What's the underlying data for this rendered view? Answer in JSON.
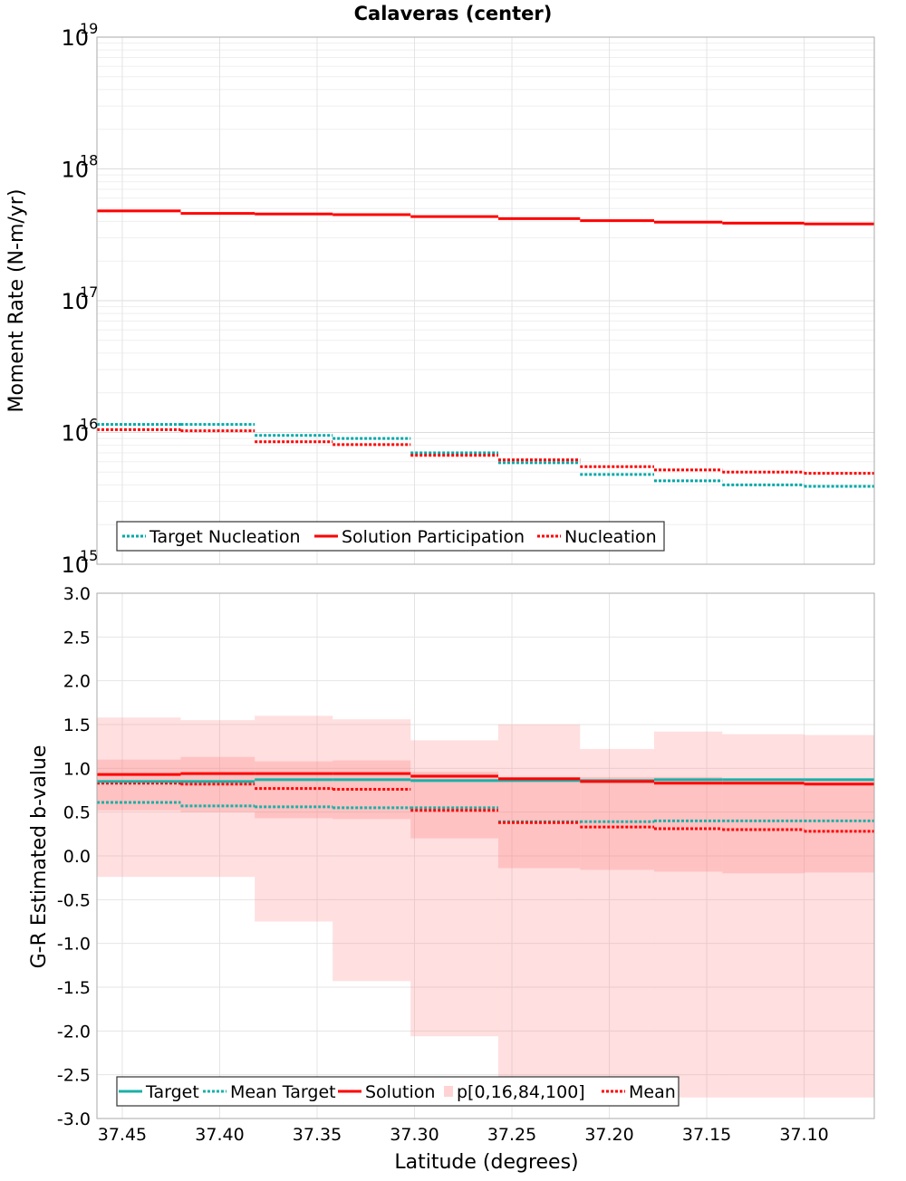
{
  "chart_data": {
    "title": "Calaveras (center)",
    "xlabel": "Latitude (degrees)",
    "x_axis": {
      "reversed": true,
      "range": [
        37.064,
        37.463
      ],
      "ticks": [
        37.45,
        37.4,
        37.35,
        37.3,
        37.25,
        37.2,
        37.15,
        37.1
      ],
      "tick_labels": [
        "37.45",
        "37.40",
        "37.35",
        "37.30",
        "37.25",
        "37.20",
        "37.15",
        "37.10"
      ]
    },
    "bin_edges": [
      37.463,
      37.42,
      37.382,
      37.342,
      37.302,
      37.257,
      37.215,
      37.177,
      37.142,
      37.1,
      37.064
    ],
    "panels": [
      {
        "type": "line",
        "ylabel": "Moment Rate (N-m/yr)",
        "y_scale": "log",
        "ylim": [
          1000000000000000.0,
          1e+19
        ],
        "y_tick_labels": [
          {
            "value": 1e+19,
            "base": "10",
            "exp": "19"
          },
          {
            "value": 1e+18,
            "base": "10",
            "exp": "18"
          },
          {
            "value": 1e+17,
            "base": "10",
            "exp": "17"
          },
          {
            "value": 1e+16,
            "base": "10",
            "exp": "16"
          },
          {
            "value": 1000000000000000.0,
            "base": "10",
            "exp": "15"
          }
        ],
        "grid": true,
        "legend_position": "bottom-left",
        "series": [
          {
            "name": "Target Nucleation",
            "color": "#00a8a8",
            "style": "dotted",
            "values": [
              1.15e+16,
              1.15e+16,
              9500000000000000.0,
              9000000000000000.0,
              7000000000000000.0,
              5900000000000000.0,
              4800000000000000.0,
              4300000000000000.0,
              4000000000000000.0,
              3900000000000000.0
            ]
          },
          {
            "name": "Solution Participation",
            "color": "#ff0000",
            "style": "solid",
            "values": [
              4.8e+17,
              4.6e+17,
              4.55e+17,
              4.5e+17,
              4.35e+17,
              4.2e+17,
              4.05e+17,
              3.95e+17,
              3.88e+17,
              3.82e+17
            ]
          },
          {
            "name": "Nucleation",
            "color": "#ff0000",
            "style": "dotted",
            "values": [
              1.05e+16,
              1.03e+16,
              8500000000000000.0,
              8100000000000000.0,
              6700000000000000.0,
              6200000000000000.0,
              5500000000000000.0,
              5200000000000000.0,
              5000000000000000.0,
              4900000000000000.0
            ]
          }
        ]
      },
      {
        "type": "line",
        "ylabel": "G-R Estimated b-value",
        "ylim": [
          -3.0,
          3.0
        ],
        "y_ticks": [
          3.0,
          2.5,
          2.0,
          1.5,
          1.0,
          0.5,
          0.0,
          -0.5,
          -1.0,
          -1.5,
          -2.0,
          -2.5,
          -3.0
        ],
        "y_tick_labels": [
          "3.0",
          "2.5",
          "2.0",
          "1.5",
          "1.0",
          "0.5",
          "0.0",
          "-0.5",
          "-1.0",
          "-1.5",
          "-2.0",
          "-2.5",
          "-3.0"
        ],
        "grid": true,
        "legend_position": "bottom-left",
        "bands": {
          "name": "p[0,16,84,100]",
          "color": "#ff8080",
          "p0": [
            -0.24,
            -0.24,
            -0.75,
            -1.43,
            -2.06,
            -2.76,
            -2.76,
            -2.76,
            -2.76,
            -2.76
          ],
          "p100": [
            1.58,
            1.55,
            1.6,
            1.56,
            1.32,
            1.5,
            1.22,
            1.42,
            1.39,
            1.38
          ],
          "p16": [
            0.52,
            0.5,
            0.43,
            0.42,
            0.2,
            -0.14,
            -0.16,
            -0.18,
            -0.2,
            -0.19
          ],
          "p84": [
            1.1,
            1.13,
            1.08,
            1.09,
            0.96,
            0.9,
            0.9,
            0.9,
            0.88,
            0.88
          ]
        },
        "series": [
          {
            "name": "Target",
            "color": "#1ab0a8",
            "style": "solid",
            "values": [
              0.85,
              0.85,
              0.87,
              0.87,
              0.86,
              0.86,
              0.86,
              0.87,
              0.87,
              0.87
            ]
          },
          {
            "name": "Mean Target",
            "color": "#1ab0a8",
            "style": "dotted",
            "values": [
              0.61,
              0.57,
              0.56,
              0.55,
              0.55,
              0.39,
              0.39,
              0.4,
              0.4,
              0.4
            ]
          },
          {
            "name": "Solution",
            "color": "#ff0000",
            "style": "solid",
            "values": [
              0.93,
              0.94,
              0.94,
              0.94,
              0.91,
              0.88,
              0.85,
              0.83,
              0.83,
              0.82
            ]
          },
          {
            "name": "Mean",
            "color": "#ff0000",
            "style": "dotted",
            "values": [
              0.83,
              0.82,
              0.77,
              0.76,
              0.52,
              0.38,
              0.33,
              0.31,
              0.3,
              0.28
            ]
          }
        ],
        "legend_order": [
          "Target",
          "Mean Target",
          "Solution",
          "p[0,16,84,100]",
          "Mean"
        ]
      }
    ]
  }
}
